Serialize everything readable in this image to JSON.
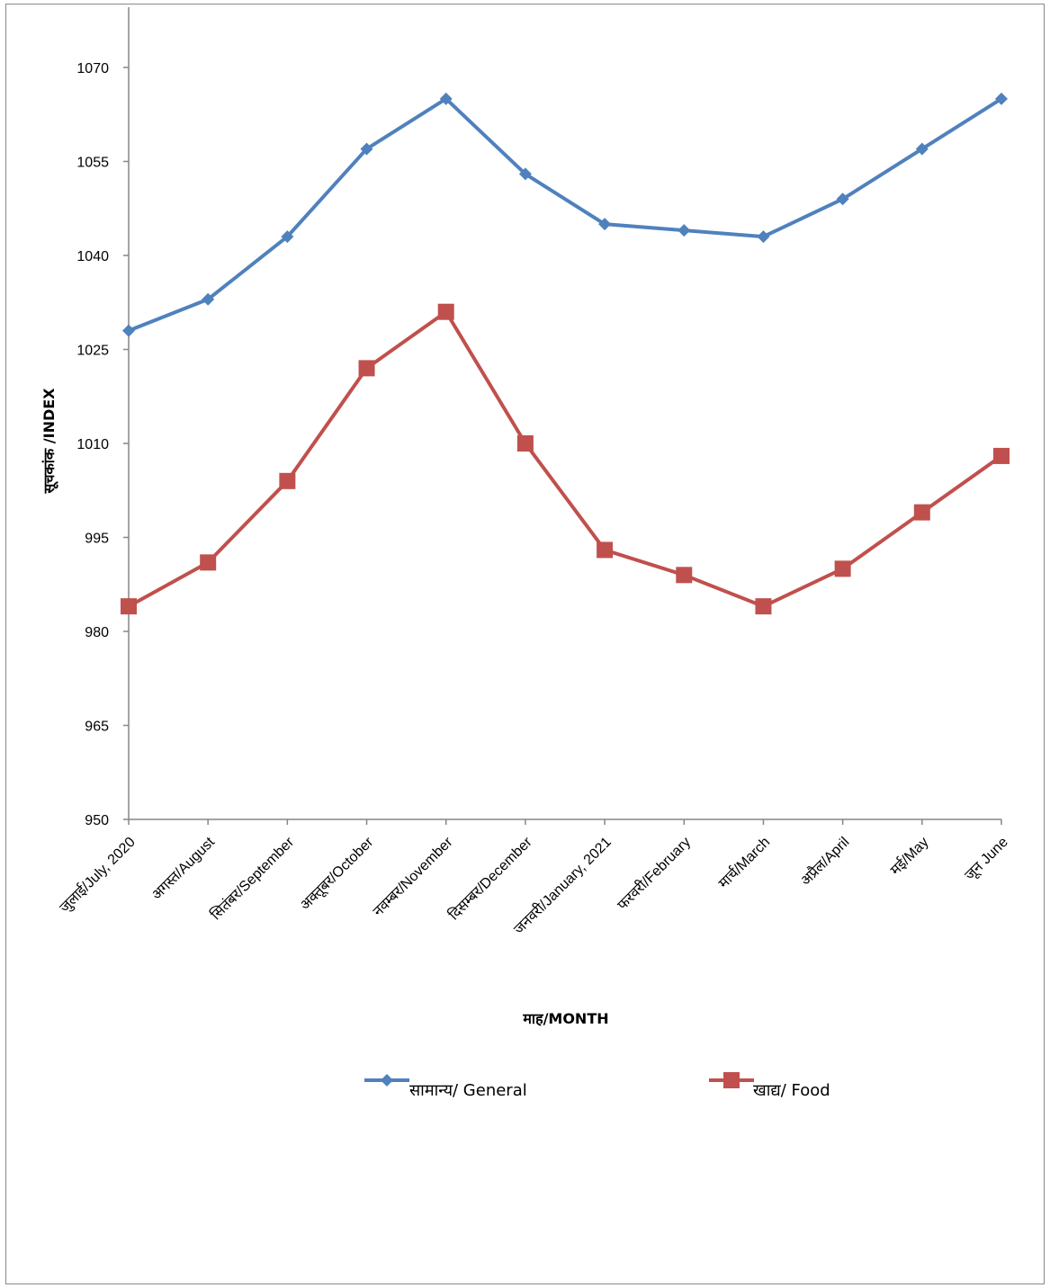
{
  "chart_data": {
    "type": "line",
    "title": "",
    "xlabel": "माह/MONTH",
    "ylabel": "सूचकांक  /INDEX",
    "ylim": [
      950,
      1070
    ],
    "yticks": [
      950,
      965,
      980,
      995,
      1010,
      1025,
      1040,
      1055,
      1070
    ],
    "categories": [
      "जुलाई/July, 2020",
      "अगस्त/August",
      "सितंबर/September",
      "अक्तूबर/October",
      "नवम्बर/November",
      "दिसम्बर/December",
      "जनवरी/January, 2021",
      "फरवरी/February",
      "मार्च/March",
      "अप्रैल/April",
      "मई/May",
      "जून  June"
    ],
    "series": [
      {
        "name": "सामान्य/  General",
        "color": "#4F81BD",
        "marker": "diamond",
        "values": [
          1028,
          1033,
          1043,
          1057,
          1065,
          1053,
          1045,
          1044,
          1043,
          1049,
          1057,
          1065
        ]
      },
      {
        "name": "खाद्य/  Food",
        "color": "#C0504D",
        "marker": "square",
        "values": [
          984,
          991,
          1004,
          1022,
          1031,
          1010,
          993,
          989,
          984,
          990,
          999,
          1008
        ]
      }
    ],
    "grid": false,
    "legend": "bottom"
  }
}
